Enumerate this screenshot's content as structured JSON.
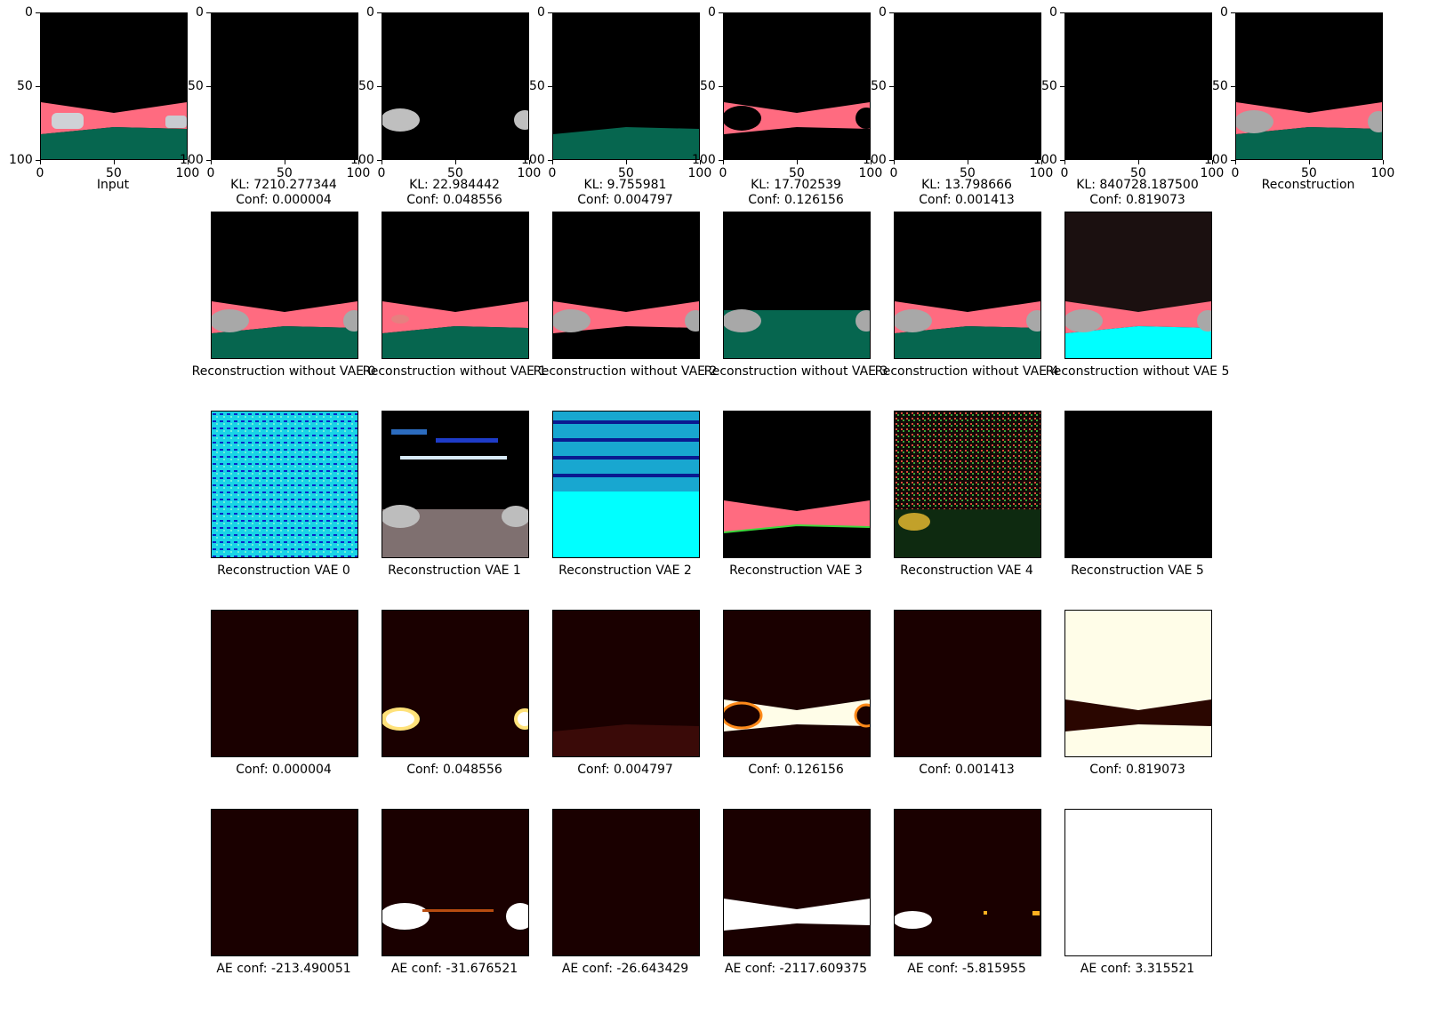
{
  "axis_ticks": {
    "y": [
      "0",
      "50",
      "100"
    ],
    "x": [
      "0",
      "50",
      "100"
    ]
  },
  "row1": {
    "input_label": "Input",
    "reconstruction_label": "Reconstruction",
    "captions": [
      "KL: 7210.277344\nConf: 0.000004",
      "KL: 22.984442\nConf: 0.048556",
      "KL: 9.755981\nConf: 0.004797",
      "KL: 17.702539\nConf: 0.126156",
      "KL: 13.798666\nConf: 0.001413",
      "KL: 840728.187500\nConf: 0.819073"
    ]
  },
  "row2": {
    "captions": [
      "Reconstruction without VAE 0",
      "Reconstruction without VAE 1",
      "Reconstruction without VAE 2",
      "Reconstruction without VAE 3",
      "Reconstruction without VAE 4",
      "Reconstruction without VAE 5"
    ]
  },
  "row3": {
    "captions": [
      "Reconstruction VAE 0",
      "Reconstruction VAE 1",
      "Reconstruction VAE 2",
      "Reconstruction VAE 3",
      "Reconstruction VAE 4",
      "Reconstruction VAE 5"
    ]
  },
  "row4": {
    "captions": [
      "Conf: 0.000004",
      "Conf: 0.048556",
      "Conf: 0.004797",
      "Conf: 0.126156",
      "Conf: 0.001413",
      "Conf: 0.819073"
    ]
  },
  "row5": {
    "captions": [
      "AE conf: -213.490051",
      "AE conf: -31.676521",
      "AE conf: -26.643429",
      "AE conf: -2117.609375",
      "AE conf: -5.815955",
      "AE conf: 3.315521"
    ]
  },
  "colors": {
    "road": "#ff6b80",
    "grass": "#06664f",
    "sky": "#000000",
    "cyan": "#00ffff",
    "heat_dark": "#1a0000",
    "heat_white": "#ffffff",
    "heat_cream": "#fffde8"
  }
}
